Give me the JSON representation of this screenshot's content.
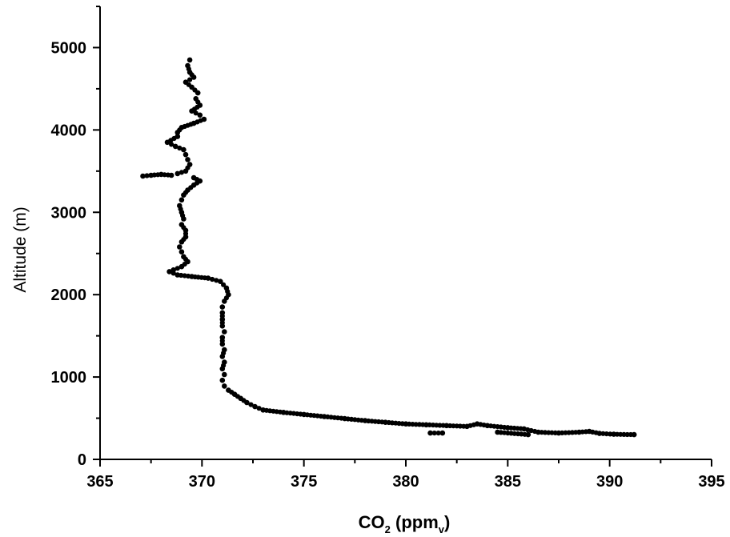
{
  "chart_data": {
    "type": "scatter",
    "title": "",
    "xlabel": "CO2 (ppmv)",
    "xlabel_parts": {
      "main": "CO",
      "sub1": "2",
      "mid": " (ppm",
      "sub2": "v",
      "end": ")"
    },
    "ylabel": "Altitude (m)",
    "xlim": [
      365,
      395
    ],
    "ylim": [
      0,
      5500
    ],
    "xticks": [
      365,
      370,
      375,
      380,
      385,
      390,
      395
    ],
    "yticks": [
      0,
      1000,
      2000,
      3000,
      4000,
      5000
    ],
    "xtick_labels": [
      "365",
      "370",
      "375",
      "380",
      "385",
      "390",
      "395"
    ],
    "ytick_labels": [
      "0",
      "1000",
      "2000",
      "3000",
      "4000",
      "5000"
    ],
    "grid": false,
    "legend": "none",
    "marker_color": "#000000",
    "series": [
      {
        "points": [
          [
            369.4,
            4850
          ],
          [
            369.3,
            4780
          ],
          [
            369.4,
            4700
          ],
          [
            369.6,
            4640
          ],
          [
            369.2,
            4580
          ],
          [
            369.5,
            4520
          ],
          [
            369.8,
            4450
          ],
          [
            369.7,
            4380
          ],
          [
            369.9,
            4300
          ],
          [
            369.5,
            4230
          ],
          [
            369.9,
            4180
          ],
          [
            370.1,
            4130
          ],
          [
            369.6,
            4080
          ],
          [
            369.0,
            4030
          ],
          [
            368.8,
            3970
          ],
          [
            368.8,
            3920
          ],
          [
            368.3,
            3850
          ],
          [
            368.7,
            3800
          ],
          [
            369.1,
            3760
          ],
          [
            369.2,
            3700
          ],
          [
            369.3,
            3640
          ],
          [
            369.4,
            3580
          ],
          [
            369.2,
            3500
          ],
          [
            368.8,
            3470
          ],
          [
            368.5,
            3450
          ],
          [
            368.0,
            3460
          ],
          [
            367.5,
            3450
          ],
          [
            367.1,
            3440
          ],
          [
            369.6,
            3420
          ],
          [
            369.9,
            3380
          ],
          [
            369.6,
            3330
          ],
          [
            369.3,
            3270
          ],
          [
            369.1,
            3210
          ],
          [
            369.0,
            3150
          ],
          [
            368.9,
            3080
          ],
          [
            369.0,
            3000
          ],
          [
            369.1,
            2920
          ],
          [
            369.0,
            2850
          ],
          [
            369.2,
            2780
          ],
          [
            369.2,
            2700
          ],
          [
            369.0,
            2640
          ],
          [
            368.9,
            2580
          ],
          [
            369.0,
            2520
          ],
          [
            369.1,
            2460
          ],
          [
            369.3,
            2400
          ],
          [
            369.0,
            2340
          ],
          [
            368.6,
            2300
          ],
          [
            368.4,
            2280
          ],
          [
            368.8,
            2240
          ],
          [
            369.5,
            2220
          ],
          [
            370.3,
            2200
          ],
          [
            370.9,
            2160
          ],
          [
            371.2,
            2080
          ],
          [
            371.3,
            2000
          ],
          [
            371.1,
            1920
          ],
          [
            371.0,
            1850
          ],
          [
            371.0,
            1780
          ],
          [
            371.0,
            1700
          ],
          [
            371.0,
            1620
          ],
          [
            371.1,
            1550
          ],
          [
            371.0,
            1480
          ],
          [
            371.0,
            1400
          ],
          [
            371.1,
            1330
          ],
          [
            371.0,
            1250
          ],
          [
            371.1,
            1180
          ],
          [
            371.0,
            1100
          ],
          [
            371.1,
            1030
          ],
          [
            371.0,
            960
          ],
          [
            371.1,
            890
          ],
          [
            371.3,
            840
          ],
          [
            371.6,
            790
          ],
          [
            371.9,
            740
          ],
          [
            372.2,
            690
          ],
          [
            372.6,
            640
          ],
          [
            373.0,
            600
          ],
          [
            374.0,
            570
          ],
          [
            375.0,
            545
          ],
          [
            376.0,
            520
          ],
          [
            377.0,
            495
          ],
          [
            378.0,
            470
          ],
          [
            379.0,
            450
          ],
          [
            380.0,
            430
          ],
          [
            381.0,
            420
          ],
          [
            382.0,
            410
          ],
          [
            383.0,
            400
          ],
          [
            383.5,
            430
          ],
          [
            384.0,
            410
          ],
          [
            385.0,
            385
          ],
          [
            385.8,
            370
          ],
          [
            386.5,
            330
          ],
          [
            387.5,
            320
          ],
          [
            388.5,
            330
          ],
          [
            389.0,
            340
          ],
          [
            389.5,
            315
          ],
          [
            390.2,
            305
          ],
          [
            391.2,
            300
          ],
          [
            381.2,
            320
          ],
          [
            381.8,
            320
          ],
          [
            384.5,
            330
          ],
          [
            386.0,
            300
          ]
        ]
      }
    ]
  }
}
